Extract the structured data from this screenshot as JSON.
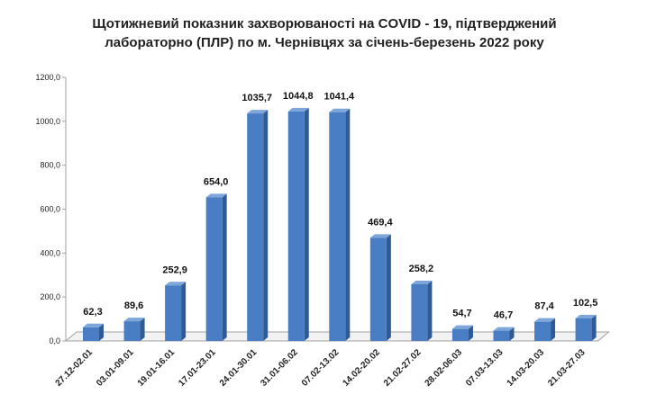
{
  "chart_data": {
    "type": "bar",
    "title": "Щотижневий показник захворюваності на COVID - 19, підтверджений лабораторно (ПЛР) по м. Чернівцях за січень-березень 2022 року",
    "categories": [
      "27.12-02.01",
      "03.01-09.01",
      "19.01-16.01",
      "17.01-23.01",
      "24.01-30.01",
      "31.01-06.02",
      "07.02-13.02",
      "14.02-20.02",
      "21.02-27.02",
      "28.02-06.03",
      "07.03-13.03",
      "14.03-20.03",
      "21.03-27.03"
    ],
    "values": [
      62.3,
      89.6,
      252.9,
      654.0,
      1035.7,
      1044.8,
      1041.4,
      469.4,
      258.2,
      54.7,
      46.7,
      87.4,
      102.5
    ],
    "value_labels": [
      "62,3",
      "89,6",
      "252,9",
      "654,0",
      "1035,7",
      "1044,8",
      "1041,4",
      "469,4",
      "258,2",
      "54,7",
      "46,7",
      "87,4",
      "102,5"
    ],
    "yticks": [
      0,
      200,
      400,
      600,
      800,
      1000,
      1200
    ],
    "ytick_labels": [
      "0,0",
      "200,0",
      "400,0",
      "600,0",
      "800,0",
      "1000,0",
      "1200,0"
    ],
    "ylim": [
      0,
      1200
    ],
    "xlabel": "",
    "ylabel": "",
    "grid": false,
    "legend": "none",
    "colors": {
      "bar_front": "#4a7ec4",
      "bar_side": "#2e5a96",
      "bar_top": "#7ea6db",
      "axis": "#a0a0a0"
    }
  }
}
